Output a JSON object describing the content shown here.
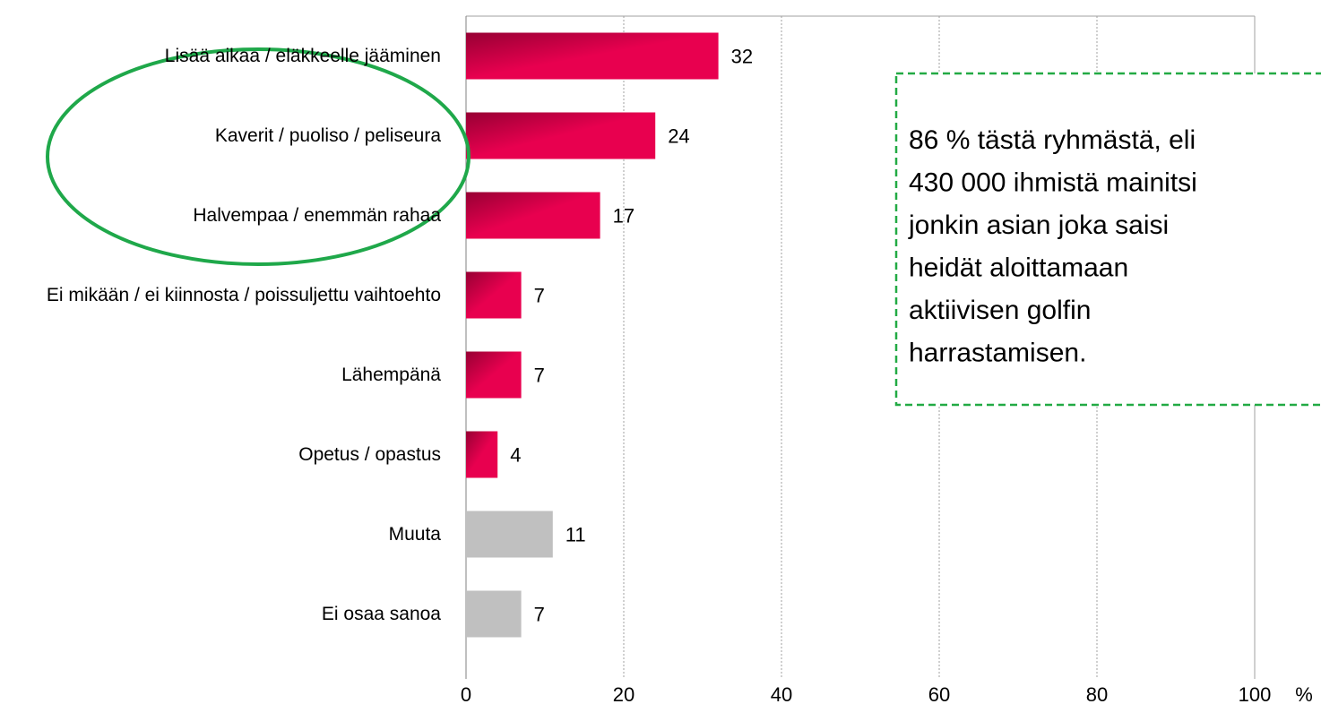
{
  "chart_data": {
    "type": "barh",
    "categories": [
      "Lisää aikaa / eläkkeelle jääminen",
      "Kaverit / puoliso / peliseura",
      "Halvempaa / enemmän rahaa",
      "Ei mikään / ei kiinnosta / poissuljettu vaihtoehto",
      "Lähempänä",
      "Opetus / opastus",
      "Muuta",
      "Ei osaa sanoa"
    ],
    "values": [
      32,
      24,
      17,
      7,
      7,
      4,
      11,
      7
    ],
    "colors": [
      "#e8004f",
      "#e8004f",
      "#e8004f",
      "#e8004f",
      "#e8004f",
      "#e8004f",
      "#c0c0c0",
      "#c0c0c0"
    ],
    "xlim": [
      0,
      100
    ],
    "xticks": [
      0,
      20,
      40,
      60,
      80,
      100
    ],
    "xlabel": "%",
    "grid": true,
    "annotation": [
      "86 % tästä ryhmästä, eli",
      "430 000 ihmistä mainitsi",
      "jonkin asian joka saisi",
      "heidät aloittamaan",
      "aktiivisen golfin",
      "harrastamisen."
    ]
  }
}
